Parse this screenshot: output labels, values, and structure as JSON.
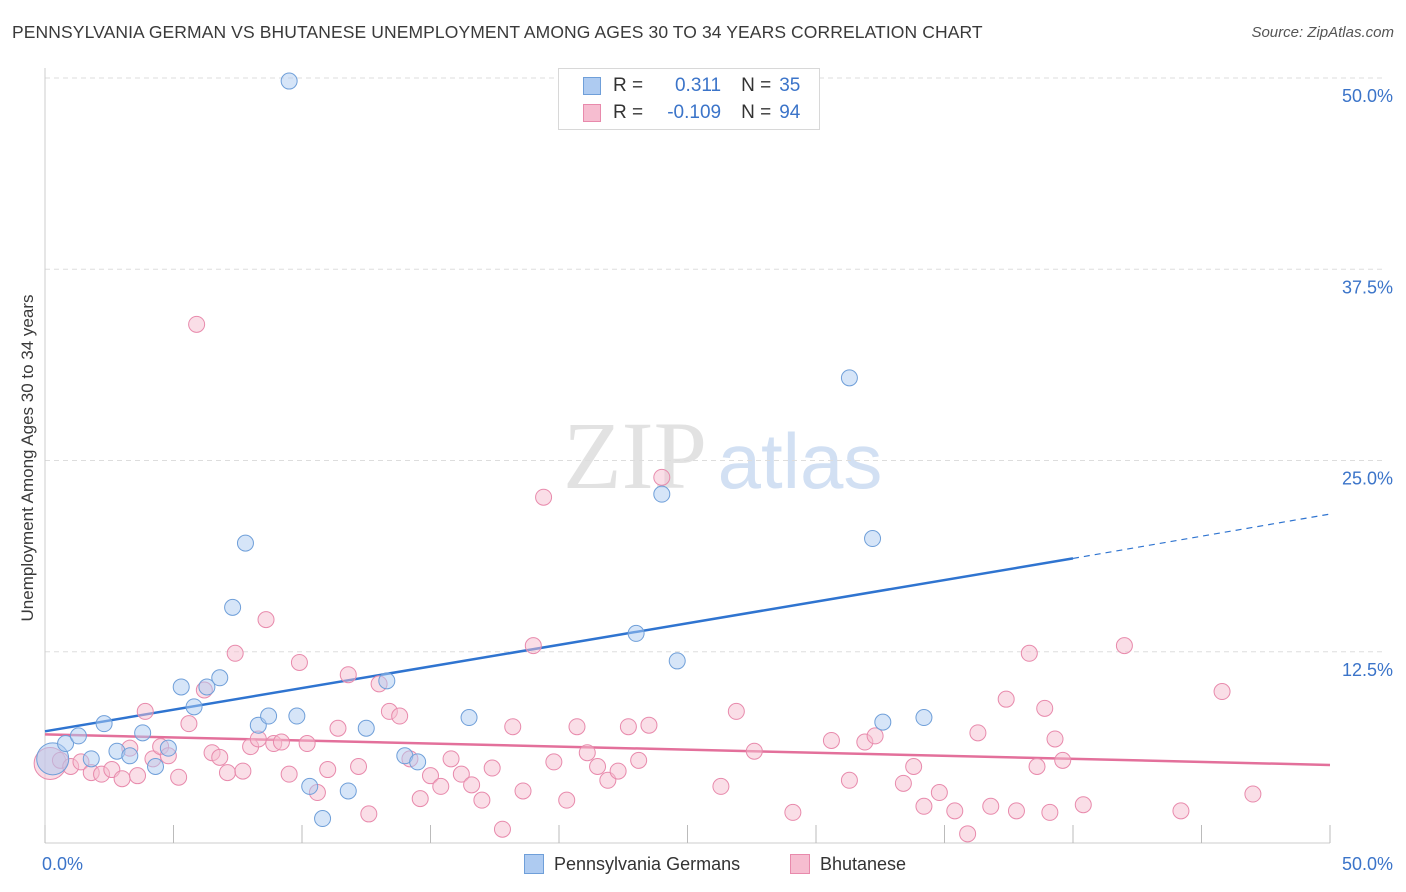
{
  "title": "PENNSYLVANIA GERMAN VS BHUTANESE UNEMPLOYMENT AMONG AGES 30 TO 34 YEARS CORRELATION CHART",
  "source": "Source: ZipAtlas.com",
  "watermark": {
    "zip": "ZIP",
    "atlas": "atlas"
  },
  "legend": {
    "rows": [
      {
        "r_label": "R =",
        "r_value": "0.311",
        "n_label": "N =",
        "n_value": "35"
      },
      {
        "r_label": "R =",
        "r_value": "-0.109",
        "n_label": "N =",
        "n_value": "94"
      }
    ]
  },
  "bottom_legend": [
    "Pennsylvania Germans",
    "Bhutanese"
  ],
  "colors": {
    "blue_fill": "#aecbf1",
    "blue_stroke": "#6f9fd9",
    "blue_line": "#2f74d0",
    "pink_fill": "#f6bdd0",
    "pink_stroke": "#e88aac",
    "pink_line": "#e3709b",
    "tick_label": "#3b74c9",
    "grid": "#dddddd"
  },
  "chart_data": {
    "type": "scatter",
    "title": "PENNSYLVANIA GERMAN VS BHUTANESE UNEMPLOYMENT AMONG AGES 30 TO 34 YEARS CORRELATION CHART",
    "xlabel": "",
    "ylabel": "Unemployment Among Ages 30 to 34 years",
    "xlim": [
      0,
      50
    ],
    "ylim": [
      0,
      50
    ],
    "x_tick_labels": [
      "0.0%",
      "50.0%"
    ],
    "y_ticks": [
      {
        "value": 12.5,
        "label": "12.5%"
      },
      {
        "value": 25.0,
        "label": "25.0%"
      },
      {
        "value": 37.5,
        "label": "37.5%"
      },
      {
        "value": 50.0,
        "label": "50.0%"
      }
    ],
    "series": [
      {
        "name": "Pennsylvania Germans",
        "R": 0.311,
        "N": 35,
        "trend": {
          "x0": 0,
          "y0": 7.3,
          "x1": 40,
          "y1": 18.6,
          "dash_to_x": 50,
          "dash_to_y": 21.5
        },
        "points": [
          [
            0.3,
            5.5,
            "big"
          ],
          [
            0.8,
            6.5
          ],
          [
            1.3,
            7.0
          ],
          [
            1.8,
            5.5
          ],
          [
            2.3,
            7.8
          ],
          [
            2.8,
            6.0
          ],
          [
            3.3,
            5.7
          ],
          [
            3.8,
            7.2
          ],
          [
            4.3,
            5.0
          ],
          [
            4.8,
            6.2
          ],
          [
            5.3,
            10.2
          ],
          [
            5.8,
            8.9
          ],
          [
            6.3,
            10.2
          ],
          [
            6.8,
            10.8
          ],
          [
            7.3,
            15.4
          ],
          [
            7.8,
            19.6
          ],
          [
            8.3,
            7.7
          ],
          [
            8.7,
            8.3
          ],
          [
            9.5,
            49.8
          ],
          [
            9.8,
            8.3
          ],
          [
            10.3,
            3.7
          ],
          [
            10.8,
            1.6
          ],
          [
            11.8,
            3.4
          ],
          [
            12.5,
            7.5
          ],
          [
            13.3,
            10.6
          ],
          [
            14.0,
            5.7
          ],
          [
            14.5,
            5.3
          ],
          [
            16.5,
            8.2
          ],
          [
            23.0,
            13.7
          ],
          [
            24.0,
            22.8
          ],
          [
            24.6,
            11.9
          ],
          [
            31.3,
            30.4
          ],
          [
            32.2,
            19.9
          ],
          [
            32.6,
            7.9
          ],
          [
            34.2,
            8.2
          ]
        ]
      },
      {
        "name": "Bhutanese",
        "R": -0.109,
        "N": 94,
        "trend": {
          "x0": 0,
          "y0": 7.1,
          "x1": 50,
          "y1": 5.1
        },
        "points": [
          [
            0.2,
            5.2,
            "big"
          ],
          [
            0.6,
            5.4
          ],
          [
            1.0,
            5.0
          ],
          [
            1.4,
            5.3
          ],
          [
            1.8,
            4.6
          ],
          [
            2.2,
            4.5
          ],
          [
            2.6,
            4.8
          ],
          [
            3.0,
            4.2
          ],
          [
            3.3,
            6.2
          ],
          [
            3.6,
            4.4
          ],
          [
            3.9,
            8.6
          ],
          [
            4.2,
            5.5
          ],
          [
            4.5,
            6.3
          ],
          [
            4.8,
            5.7
          ],
          [
            5.2,
            4.3
          ],
          [
            5.6,
            7.8
          ],
          [
            5.9,
            33.9
          ],
          [
            6.2,
            10.0
          ],
          [
            6.5,
            5.9
          ],
          [
            6.8,
            5.6
          ],
          [
            7.1,
            4.6
          ],
          [
            7.4,
            12.4
          ],
          [
            7.7,
            4.7
          ],
          [
            8.0,
            6.3
          ],
          [
            8.3,
            6.8
          ],
          [
            8.6,
            14.6
          ],
          [
            8.9,
            6.5
          ],
          [
            9.2,
            6.6
          ],
          [
            9.5,
            4.5
          ],
          [
            9.9,
            11.8
          ],
          [
            10.2,
            6.5
          ],
          [
            10.6,
            3.3
          ],
          [
            11.0,
            4.8
          ],
          [
            11.4,
            7.5
          ],
          [
            11.8,
            11.0
          ],
          [
            12.2,
            5.0
          ],
          [
            12.6,
            1.9
          ],
          [
            13.0,
            10.4
          ],
          [
            13.4,
            8.6
          ],
          [
            13.8,
            8.3
          ],
          [
            14.2,
            5.5
          ],
          [
            14.6,
            2.9
          ],
          [
            15.0,
            4.4
          ],
          [
            15.4,
            3.7
          ],
          [
            15.8,
            5.5
          ],
          [
            16.2,
            4.5
          ],
          [
            16.6,
            3.8
          ],
          [
            17.0,
            2.8
          ],
          [
            17.4,
            4.9
          ],
          [
            17.8,
            0.9
          ],
          [
            18.2,
            7.6
          ],
          [
            18.6,
            3.4
          ],
          [
            19.0,
            12.9
          ],
          [
            19.4,
            22.6
          ],
          [
            19.8,
            5.3
          ],
          [
            20.3,
            2.8
          ],
          [
            20.7,
            7.6
          ],
          [
            21.1,
            5.9
          ],
          [
            21.5,
            5.0
          ],
          [
            21.9,
            4.1
          ],
          [
            22.3,
            4.7
          ],
          [
            22.7,
            7.6
          ],
          [
            23.1,
            5.4
          ],
          [
            23.5,
            7.7
          ],
          [
            24.0,
            23.9
          ],
          [
            26.3,
            3.7
          ],
          [
            26.9,
            8.6
          ],
          [
            27.6,
            6.0
          ],
          [
            29.1,
            2.0
          ],
          [
            30.6,
            6.7
          ],
          [
            31.3,
            4.1
          ],
          [
            31.9,
            6.6
          ],
          [
            32.3,
            7.0
          ],
          [
            33.4,
            3.9
          ],
          [
            33.8,
            5.0
          ],
          [
            34.2,
            2.4
          ],
          [
            34.8,
            3.3
          ],
          [
            35.4,
            2.1
          ],
          [
            35.9,
            0.6
          ],
          [
            36.3,
            7.2
          ],
          [
            36.8,
            2.4
          ],
          [
            37.4,
            9.4
          ],
          [
            37.8,
            2.1
          ],
          [
            38.3,
            12.4
          ],
          [
            38.9,
            8.8
          ],
          [
            38.6,
            5.0
          ],
          [
            39.3,
            6.8
          ],
          [
            39.6,
            5.4
          ],
          [
            39.1,
            2.0
          ],
          [
            40.4,
            2.5
          ],
          [
            42.0,
            12.9
          ],
          [
            44.2,
            2.1
          ],
          [
            45.8,
            9.9
          ],
          [
            47.0,
            3.2
          ]
        ]
      }
    ]
  }
}
